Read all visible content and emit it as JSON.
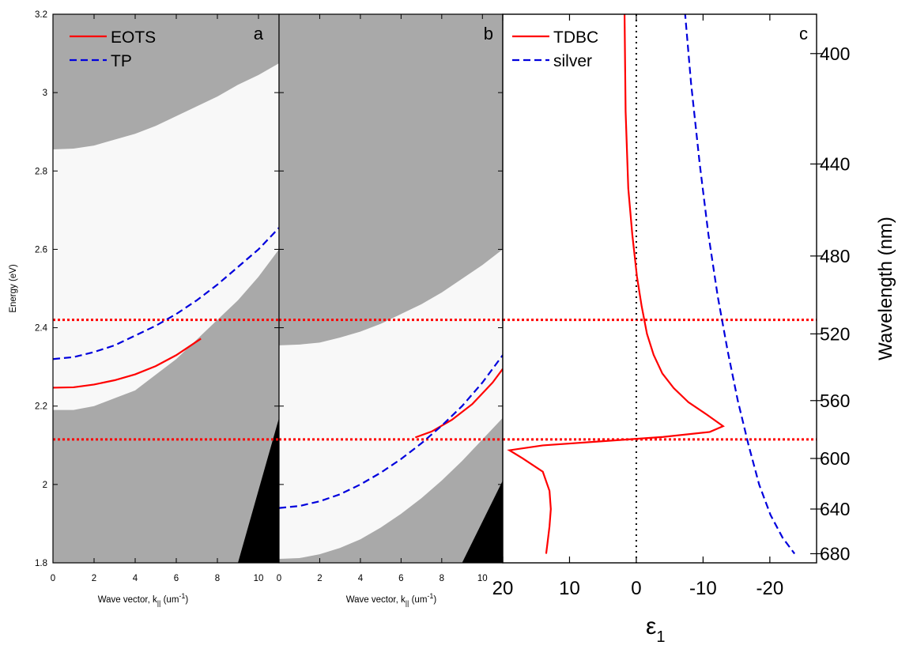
{
  "chart_data": [
    {
      "id": "a",
      "type": "line",
      "panel_label": "a",
      "xlabel": "Wave vector, k",
      "xlabel_sub": "||",
      "xlabel_unit": " (um",
      "xlabel_unit_sup": "-1",
      "xlabel_unit_end": ")",
      "ylabel": "Energy (eV)",
      "xlim": [
        0,
        11
      ],
      "ylim": [
        1.8,
        3.2
      ],
      "x_ticks": [
        0,
        2,
        4,
        6,
        8,
        10
      ],
      "y_ticks": [
        1.8,
        2.0,
        2.2,
        2.4,
        2.6,
        2.8,
        3.0,
        3.2
      ],
      "y_tick_labels": [
        "1.8",
        "2",
        "2.2",
        "2.4",
        "2.6",
        "2.8",
        "3",
        "3.2"
      ],
      "background_bands": {
        "colors": {
          "gray": "#a9a9a9",
          "white": "#f8f8f8",
          "black": "#000000"
        },
        "lower_white_edge": {
          "x": [
            0,
            1,
            2,
            3,
            4,
            5,
            6,
            7,
            8,
            9,
            10,
            11
          ],
          "y": [
            2.19,
            2.19,
            2.2,
            2.22,
            2.24,
            2.28,
            2.32,
            2.37,
            2.42,
            2.47,
            2.53,
            2.6
          ]
        },
        "upper_white_edge": {
          "x": [
            0,
            1,
            2,
            3,
            4,
            5,
            6,
            7,
            8,
            9,
            10,
            11
          ],
          "y": [
            2.855,
            2.857,
            2.865,
            2.88,
            2.895,
            2.915,
            2.94,
            2.965,
            2.99,
            3.02,
            3.045,
            3.075
          ]
        },
        "black_region": {
          "x": [
            9.0,
            11.0,
            11.0
          ],
          "y": [
            1.8,
            1.8,
            2.17
          ]
        }
      },
      "series": [
        {
          "name": "EOTS",
          "color": "#ff0000",
          "dash": "solid",
          "x": [
            0,
            1,
            2,
            3,
            4,
            5,
            6,
            7.2
          ],
          "y": [
            2.247,
            2.248,
            2.255,
            2.266,
            2.281,
            2.302,
            2.33,
            2.372
          ]
        },
        {
          "name": "TP",
          "color": "#0000dd",
          "dash": "dashed",
          "x": [
            0,
            1,
            2,
            3,
            4,
            5,
            6,
            7,
            8,
            9,
            10,
            11
          ],
          "y": [
            2.32,
            2.325,
            2.338,
            2.355,
            2.38,
            2.405,
            2.435,
            2.47,
            2.51,
            2.555,
            2.6,
            2.655
          ]
        }
      ]
    },
    {
      "id": "b",
      "type": "line",
      "panel_label": "b",
      "xlabel": "Wave vector, k",
      "xlabel_sub": "||",
      "xlabel_unit": " (um",
      "xlabel_unit_sup": "-1",
      "xlabel_unit_end": ")",
      "xlim": [
        0,
        11
      ],
      "ylim": [
        1.8,
        3.2
      ],
      "x_ticks": [
        0,
        2,
        4,
        6,
        8,
        10
      ],
      "background_bands": {
        "colors": {
          "gray": "#a9a9a9",
          "white": "#f8f8f8",
          "black": "#000000"
        },
        "lower_white_edge": {
          "x": [
            0,
            1,
            2,
            3,
            4,
            5,
            6,
            7,
            8,
            9,
            10,
            11
          ],
          "y": [
            1.81,
            1.812,
            1.822,
            1.838,
            1.86,
            1.89,
            1.925,
            1.965,
            2.01,
            2.06,
            2.115,
            2.17
          ]
        },
        "upper_white_edge": {
          "x": [
            0,
            1,
            2,
            3,
            4,
            5,
            6,
            7,
            8,
            9,
            10,
            11
          ],
          "y": [
            2.355,
            2.357,
            2.362,
            2.375,
            2.39,
            2.41,
            2.435,
            2.46,
            2.49,
            2.525,
            2.56,
            2.6
          ]
        },
        "black_region": {
          "x": [
            9.0,
            11.0,
            11.0
          ],
          "y": [
            1.8,
            1.8,
            2.01
          ]
        }
      },
      "series": [
        {
          "name": "EOTS",
          "color": "#ff0000",
          "dash": "solid",
          "x": [
            6.7,
            7.5,
            8.5,
            9.5,
            10.5,
            11
          ],
          "y": [
            2.12,
            2.135,
            2.165,
            2.205,
            2.26,
            2.295
          ]
        },
        {
          "name": "TP",
          "color": "#0000dd",
          "dash": "dashed",
          "x": [
            0,
            1,
            2,
            3,
            4,
            5,
            6,
            7,
            8,
            9,
            10,
            11
          ],
          "y": [
            1.94,
            1.945,
            1.957,
            1.975,
            2.0,
            2.03,
            2.065,
            2.105,
            2.15,
            2.2,
            2.26,
            2.33
          ]
        }
      ]
    },
    {
      "id": "c",
      "type": "line",
      "panel_label": "c",
      "xlabel": "ε",
      "xlabel_sub": "1",
      "ylabel": "Wavelength (nm)",
      "xlim": [
        20,
        -27
      ],
      "x_ticks": [
        20,
        10,
        0,
        -10,
        -20
      ],
      "x_tick_labels": [
        "20",
        "10",
        "0",
        "-10",
        "-20"
      ],
      "y_ticks": [
        400,
        440,
        480,
        520,
        560,
        600,
        640,
        680
      ],
      "reference_zero_line": "dotted",
      "series": [
        {
          "name": "TDBC",
          "color": "#ff0000",
          "dash": "solid",
          "eps": [
            1.8,
            1.6,
            1.2,
            0.6,
            -0.1,
            -0.8,
            -1.6,
            -2.6,
            -3.9,
            -5.6,
            -7.8,
            -10.5,
            -13.0,
            -11.0,
            -4.0,
            5.0,
            14.0,
            19.0,
            17.0,
            14.0,
            13.0,
            12.8,
            13.0,
            13.3,
            13.5
          ],
          "wavelength": [
            380,
            420,
            450,
            470,
            490,
            505,
            520,
            532,
            543,
            552,
            561,
            569,
            577,
            581,
            584.5,
            587.5,
            590.5,
            594,
            600,
            610,
            625,
            640,
            655,
            670,
            680
          ]
        },
        {
          "name": "silver",
          "color": "#0000dd",
          "dash": "dashed",
          "eps": [
            -7.0,
            -8.2,
            -9.5,
            -10.8,
            -12.2,
            -13.7,
            -15.2,
            -16.8,
            -18.4,
            -20.1,
            -21.9,
            -23.7
          ],
          "wavelength": [
            380,
            410,
            440,
            470,
            500,
            530,
            560,
            590,
            620,
            645,
            665,
            680
          ]
        }
      ]
    }
  ],
  "reference_lines": {
    "color": "#ff0000",
    "style": "dotted",
    "energies_eV": [
      2.42,
      2.115
    ],
    "wavelengths_nm": [
      512.2,
      585.8
    ]
  },
  "legend_a": [
    {
      "label": "EOTS",
      "color": "#ff0000",
      "dash": "solid"
    },
    {
      "label": "TP",
      "color": "#0000dd",
      "dash": "dashed"
    }
  ],
  "legend_c": [
    {
      "label": "TDBC",
      "color": "#ff0000",
      "dash": "solid"
    },
    {
      "label": "silver",
      "color": "#0000dd",
      "dash": "dashed"
    }
  ]
}
